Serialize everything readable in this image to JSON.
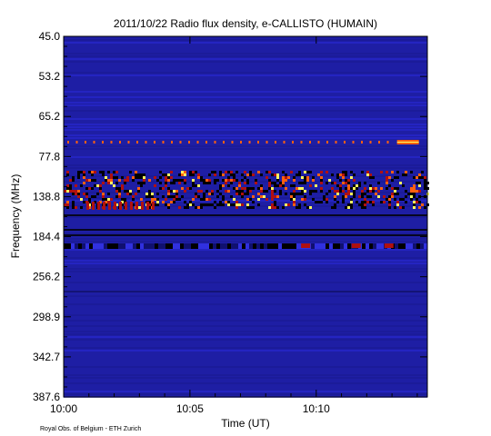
{
  "chart_data": {
    "type": "heatmap",
    "title": "2011/10/22  Radio flux density, e-CALLISTO (HUMAIN)",
    "xlabel": "Time (UT)",
    "ylabel": "Frequency (MHz)",
    "credit": "Royal Obs. of Belgium - ETH Zurich",
    "x_tick_labels": [
      "10:00",
      "10:05",
      "10:10"
    ],
    "x_tick_minutes": [
      0,
      5,
      10
    ],
    "x_range_minutes": [
      0,
      14.4
    ],
    "y_tick_labels": [
      "45.0",
      "53.2",
      "65.2",
      "77.8",
      "138.8",
      "184.4",
      "256.2",
      "298.9",
      "342.7",
      "387.6"
    ],
    "y_range_mhz": [
      45.0,
      387.6
    ],
    "y_direction": "frequency increases downward",
    "colorscale": [
      "#1e1ea4",
      "#2a2ad8",
      "#000000",
      "#b01010",
      "#ff6010",
      "#ffff60"
    ],
    "features": [
      {
        "label": "periodic interference dots",
        "freq_mhz": 75,
        "time_minutes": [
          0,
          14.4
        ]
      },
      {
        "label": "strong interference block",
        "freq_mhz": 75,
        "time_minutes": [
          13.2,
          14.0
        ]
      },
      {
        "label": "broadband RFI band",
        "freq_mhz": [
          120,
          150
        ],
        "time_minutes": [
          0,
          14.4
        ]
      },
      {
        "label": "dark absorption band",
        "freq_mhz": [
          185,
          195
        ],
        "time_minutes": [
          0,
          14.4
        ]
      }
    ]
  }
}
